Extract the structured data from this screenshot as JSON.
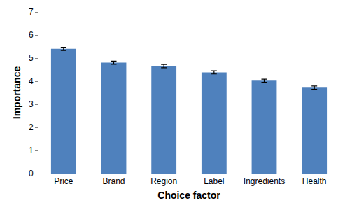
{
  "chart_data": {
    "type": "bar",
    "x_label": "Choice factor",
    "y_label": "Importance",
    "categories": [
      "Price",
      "Brand",
      "Region",
      "Label",
      "Ingredients",
      "Health"
    ],
    "values": [
      5.4,
      4.8,
      4.65,
      4.38,
      4.02,
      3.72
    ],
    "errors": [
      0.07,
      0.07,
      0.07,
      0.07,
      0.07,
      0.07
    ],
    "color": "#4f81bd",
    "ylim": [
      0,
      7
    ],
    "yticks": [
      0,
      1,
      2,
      3,
      4,
      5,
      6,
      7
    ],
    "grid": false
  }
}
